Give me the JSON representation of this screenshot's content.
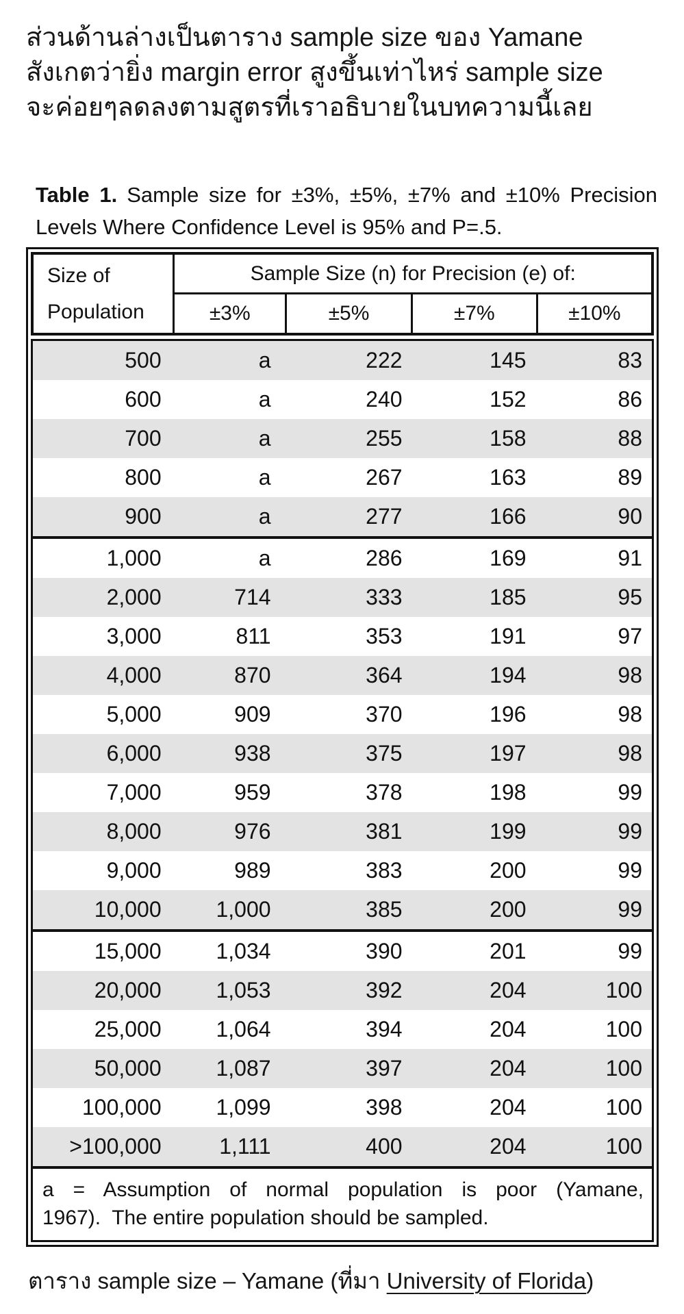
{
  "intro": {
    "lines": [
      "ส่วนด้านล่างเป็นตาราง sample size ของ Yamane",
      "สังเกตว่ายิ่ง margin error สูงขึ้นเท่าไหร่ sample size",
      "จะค่อยๆลดลงตามสูตรที่เราอธิบายในบทความนี้เลย"
    ]
  },
  "table": {
    "title_label": "Table 1.",
    "title_text": "Sample size for ±3%, ±5%, ±7% and ±10% Precision Levels Where Confidence Level is 95% and P=.5.",
    "header": {
      "col0_line1": "Size of",
      "col0_line2": "Population",
      "span_label": "Sample Size (n) for Precision (e) of:",
      "precision_labels": [
        "±3%",
        "±5%",
        "±7%",
        "±10%"
      ]
    },
    "groups": [
      [
        [
          "500",
          "a",
          "222",
          "145",
          "83"
        ],
        [
          "600",
          "a",
          "240",
          "152",
          "86"
        ],
        [
          "700",
          "a",
          "255",
          "158",
          "88"
        ],
        [
          "800",
          "a",
          "267",
          "163",
          "89"
        ],
        [
          "900",
          "a",
          "277",
          "166",
          "90"
        ]
      ],
      [
        [
          "1,000",
          "a",
          "286",
          "169",
          "91"
        ],
        [
          "2,000",
          "714",
          "333",
          "185",
          "95"
        ],
        [
          "3,000",
          "811",
          "353",
          "191",
          "97"
        ],
        [
          "4,000",
          "870",
          "364",
          "194",
          "98"
        ],
        [
          "5,000",
          "909",
          "370",
          "196",
          "98"
        ],
        [
          "6,000",
          "938",
          "375",
          "197",
          "98"
        ],
        [
          "7,000",
          "959",
          "378",
          "198",
          "99"
        ],
        [
          "8,000",
          "976",
          "381",
          "199",
          "99"
        ],
        [
          "9,000",
          "989",
          "383",
          "200",
          "99"
        ],
        [
          "10,000",
          "1,000",
          "385",
          "200",
          "99"
        ]
      ],
      [
        [
          "15,000",
          "1,034",
          "390",
          "201",
          "99"
        ],
        [
          "20,000",
          "1,053",
          "392",
          "204",
          "100"
        ],
        [
          "25,000",
          "1,064",
          "394",
          "204",
          "100"
        ],
        [
          "50,000",
          "1,087",
          "397",
          "204",
          "100"
        ],
        [
          "100,000",
          "1,099",
          "398",
          "204",
          "100"
        ],
        [
          ">100,000",
          "1,111",
          "400",
          "204",
          "100"
        ]
      ]
    ],
    "footnote_lines": [
      "a = Assumption of normal population is poor (Yamane,",
      "1967).  The entire population should be sampled."
    ]
  },
  "caption": {
    "prefix": "ตาราง sample size – Yamane (ที่มา ",
    "link": "University of Florida",
    "suffix": ")"
  },
  "colors": {
    "row_shade": "#e3e3e3",
    "border": "#111111",
    "text": "#161616"
  },
  "chart_data": {
    "type": "table",
    "title": "Table 1. Sample size for ±3%, ±5%, ±7% and ±10% Precision Levels Where Confidence Level is 95% and P=.5.",
    "columns": [
      "Size of Population",
      "±3%",
      "±5%",
      "±7%",
      "±10%"
    ],
    "rows": [
      [
        "500",
        "a",
        222,
        145,
        83
      ],
      [
        "600",
        "a",
        240,
        152,
        86
      ],
      [
        "700",
        "a",
        255,
        158,
        88
      ],
      [
        "800",
        "a",
        267,
        163,
        89
      ],
      [
        "900",
        "a",
        277,
        166,
        90
      ],
      [
        "1,000",
        "a",
        286,
        169,
        91
      ],
      [
        "2,000",
        714,
        333,
        185,
        95
      ],
      [
        "3,000",
        811,
        353,
        191,
        97
      ],
      [
        "4,000",
        870,
        364,
        194,
        98
      ],
      [
        "5,000",
        909,
        370,
        196,
        98
      ],
      [
        "6,000",
        938,
        375,
        197,
        98
      ],
      [
        "7,000",
        959,
        378,
        198,
        99
      ],
      [
        "8,000",
        976,
        381,
        199,
        99
      ],
      [
        "9,000",
        989,
        383,
        200,
        99
      ],
      [
        "10,000",
        "1,000",
        385,
        200,
        99
      ],
      [
        "15,000",
        "1,034",
        390,
        201,
        99
      ],
      [
        "20,000",
        "1,053",
        392,
        204,
        100
      ],
      [
        "25,000",
        "1,064",
        394,
        204,
        100
      ],
      [
        "50,000",
        "1,087",
        397,
        204,
        100
      ],
      [
        "100,000",
        "1,099",
        398,
        204,
        100
      ],
      [
        ">100,000",
        "1,111",
        400,
        204,
        100
      ]
    ],
    "footnote": "a = Assumption of normal population is poor (Yamane, 1967). The entire population should be sampled."
  }
}
